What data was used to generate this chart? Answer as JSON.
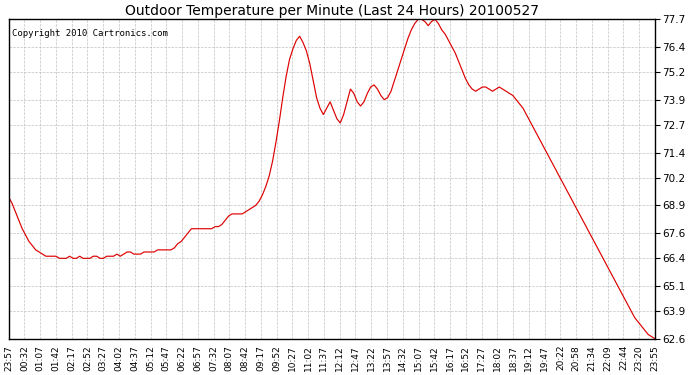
{
  "title": "Outdoor Temperature per Minute (Last 24 Hours) 20100527",
  "copyright": "Copyright 2010 Cartronics.com",
  "line_color": "#dd0000",
  "background_color": "#ffffff",
  "plot_bg_color": "#ffffff",
  "grid_color": "#bbbbbb",
  "ylim": [
    62.6,
    77.7
  ],
  "yticks": [
    62.6,
    63.9,
    65.1,
    66.4,
    67.6,
    68.9,
    70.2,
    71.4,
    72.7,
    73.9,
    75.2,
    76.4,
    77.7
  ],
  "xtick_labels": [
    "23:57",
    "00:32",
    "01:07",
    "01:42",
    "02:17",
    "02:52",
    "03:27",
    "04:02",
    "04:37",
    "05:12",
    "05:47",
    "06:22",
    "06:57",
    "07:32",
    "08:07",
    "08:42",
    "09:17",
    "09:52",
    "10:27",
    "11:02",
    "11:37",
    "12:12",
    "12:47",
    "13:22",
    "13:57",
    "14:32",
    "15:07",
    "15:42",
    "16:17",
    "16:52",
    "17:27",
    "18:02",
    "18:37",
    "19:12",
    "19:47",
    "20:22",
    "20:58",
    "21:34",
    "22:09",
    "22:44",
    "23:20",
    "23:55"
  ],
  "temperature_profile": [
    69.3,
    69.0,
    68.6,
    68.2,
    67.8,
    67.5,
    67.2,
    67.0,
    66.8,
    66.7,
    66.6,
    66.5,
    66.5,
    66.5,
    66.5,
    66.4,
    66.4,
    66.4,
    66.5,
    66.4,
    66.4,
    66.5,
    66.4,
    66.4,
    66.4,
    66.5,
    66.5,
    66.4,
    66.4,
    66.5,
    66.5,
    66.5,
    66.6,
    66.5,
    66.6,
    66.7,
    66.7,
    66.6,
    66.6,
    66.6,
    66.7,
    66.7,
    66.7,
    66.7,
    66.8,
    66.8,
    66.8,
    66.8,
    66.8,
    66.9,
    67.1,
    67.2,
    67.4,
    67.6,
    67.8,
    67.8,
    67.8,
    67.8,
    67.8,
    67.8,
    67.8,
    67.9,
    67.9,
    68.0,
    68.2,
    68.4,
    68.5,
    68.5,
    68.5,
    68.5,
    68.6,
    68.7,
    68.8,
    68.9,
    69.1,
    69.4,
    69.8,
    70.3,
    71.0,
    71.9,
    72.9,
    74.0,
    75.0,
    75.8,
    76.3,
    76.7,
    76.9,
    76.6,
    76.2,
    75.6,
    74.8,
    74.0,
    73.5,
    73.2,
    73.5,
    73.8,
    73.4,
    73.0,
    72.8,
    73.2,
    73.8,
    74.4,
    74.2,
    73.8,
    73.6,
    73.8,
    74.2,
    74.5,
    74.6,
    74.4,
    74.1,
    73.9,
    74.0,
    74.3,
    74.8,
    75.3,
    75.8,
    76.3,
    76.8,
    77.2,
    77.5,
    77.7,
    77.7,
    77.6,
    77.4,
    77.6,
    77.7,
    77.5,
    77.2,
    77.0,
    76.7,
    76.4,
    76.1,
    75.7,
    75.3,
    74.9,
    74.6,
    74.4,
    74.3,
    74.4,
    74.5,
    74.5,
    74.4,
    74.3,
    74.4,
    74.5,
    74.4,
    74.3,
    74.2,
    74.1,
    73.9,
    73.7,
    73.5,
    73.2,
    72.9,
    72.6,
    72.3,
    72.0,
    71.7,
    71.4,
    71.1,
    70.8,
    70.5,
    70.2,
    69.9,
    69.6,
    69.3,
    69.0,
    68.7,
    68.4,
    68.1,
    67.8,
    67.5,
    67.2,
    66.9,
    66.6,
    66.3,
    66.0,
    65.7,
    65.4,
    65.1,
    64.8,
    64.5,
    64.2,
    63.9,
    63.6,
    63.4,
    63.2,
    63.0,
    62.8,
    62.7,
    62.6
  ]
}
